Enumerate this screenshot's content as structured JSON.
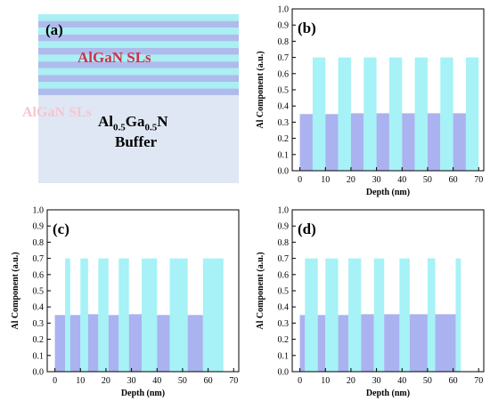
{
  "schematic": {
    "panel_label": "(a)",
    "sls_label": "AlGaN SLs",
    "ghost_label": "AlGaN SLs",
    "buffer": {
      "main": "Al",
      "sub1": "0.5",
      "mid": "Ga",
      "sub2": "0.5",
      "end": "N",
      "line2": "Buffer"
    },
    "colors": {
      "light_stripe": "#a9eff3",
      "dark_stripe": "#aebbeb",
      "buffer": "#dfe7f4"
    }
  },
  "colors": {
    "barrier": "#a6f2f6",
    "well": "#aab2ef",
    "axis": "#000000"
  },
  "chart_data": [
    {
      "type": "bar",
      "panel": "(b)",
      "xlabel": "Depth (nm)",
      "ylabel": "Al Component (a.u.)",
      "xlim": [
        -3,
        72
      ],
      "ylim": [
        0,
        1.0
      ],
      "xticks": [
        0,
        10,
        20,
        30,
        40,
        50,
        60,
        70
      ],
      "yticks": [
        0,
        0.1,
        0.2,
        0.3,
        0.4,
        0.5,
        0.6,
        0.7,
        0.8,
        0.9,
        1.0
      ],
      "layers": [
        {
          "x0": 0,
          "x1": 5,
          "y": 0.35
        },
        {
          "x0": 5,
          "x1": 10,
          "y": 0.7
        },
        {
          "x0": 10,
          "x1": 15,
          "y": 0.35
        },
        {
          "x0": 15,
          "x1": 20,
          "y": 0.7
        },
        {
          "x0": 20,
          "x1": 25,
          "y": 0.355
        },
        {
          "x0": 25,
          "x1": 30,
          "y": 0.7
        },
        {
          "x0": 30,
          "x1": 35,
          "y": 0.355
        },
        {
          "x0": 35,
          "x1": 40,
          "y": 0.7
        },
        {
          "x0": 40,
          "x1": 45,
          "y": 0.355
        },
        {
          "x0": 45,
          "x1": 50,
          "y": 0.7
        },
        {
          "x0": 50,
          "x1": 55,
          "y": 0.355
        },
        {
          "x0": 55,
          "x1": 60,
          "y": 0.7
        },
        {
          "x0": 60,
          "x1": 65,
          "y": 0.355
        },
        {
          "x0": 65,
          "x1": 70,
          "y": 0.7
        }
      ]
    },
    {
      "type": "bar",
      "panel": "(c)",
      "xlabel": "Depth (nm)",
      "ylabel": "Al Component (a.u.)",
      "xlim": [
        -3,
        72
      ],
      "ylim": [
        0,
        1.0
      ],
      "xticks": [
        0,
        10,
        20,
        30,
        40,
        50,
        60,
        70
      ],
      "yticks": [
        0,
        0.1,
        0.2,
        0.3,
        0.4,
        0.5,
        0.6,
        0.7,
        0.8,
        0.9,
        1.0
      ],
      "layers": [
        {
          "x0": 0,
          "x1": 4,
          "y": 0.35
        },
        {
          "x0": 4,
          "x1": 6,
          "y": 0.7
        },
        {
          "x0": 6,
          "x1": 10,
          "y": 0.35
        },
        {
          "x0": 10,
          "x1": 13,
          "y": 0.7
        },
        {
          "x0": 13,
          "x1": 17,
          "y": 0.355
        },
        {
          "x0": 17,
          "x1": 21,
          "y": 0.7
        },
        {
          "x0": 21,
          "x1": 25,
          "y": 0.35
        },
        {
          "x0": 25,
          "x1": 29,
          "y": 0.7
        },
        {
          "x0": 29,
          "x1": 34,
          "y": 0.355
        },
        {
          "x0": 34,
          "x1": 40,
          "y": 0.7
        },
        {
          "x0": 40,
          "x1": 45,
          "y": 0.35
        },
        {
          "x0": 45,
          "x1": 52,
          "y": 0.7
        },
        {
          "x0": 52,
          "x1": 58,
          "y": 0.35
        },
        {
          "x0": 58,
          "x1": 66,
          "y": 0.7
        }
      ]
    },
    {
      "type": "bar",
      "panel": "(d)",
      "xlabel": "Depth (nm)",
      "ylabel": "Al Component (a.u.)",
      "xlim": [
        -3,
        72
      ],
      "ylim": [
        0,
        1.0
      ],
      "xticks": [
        0,
        10,
        20,
        30,
        40,
        50,
        60,
        70
      ],
      "yticks": [
        0,
        0.1,
        0.2,
        0.3,
        0.4,
        0.5,
        0.6,
        0.7,
        0.8,
        0.9,
        1.0
      ],
      "layers": [
        {
          "x0": 0,
          "x1": 2,
          "y": 0.35
        },
        {
          "x0": 2,
          "x1": 7,
          "y": 0.7
        },
        {
          "x0": 7,
          "x1": 10,
          "y": 0.35
        },
        {
          "x0": 10,
          "x1": 15,
          "y": 0.7
        },
        {
          "x0": 15,
          "x1": 19,
          "y": 0.35
        },
        {
          "x0": 19,
          "x1": 24,
          "y": 0.7
        },
        {
          "x0": 24,
          "x1": 29,
          "y": 0.355
        },
        {
          "x0": 29,
          "x1": 33,
          "y": 0.7
        },
        {
          "x0": 33,
          "x1": 39,
          "y": 0.355
        },
        {
          "x0": 39,
          "x1": 43,
          "y": 0.7
        },
        {
          "x0": 43,
          "x1": 50,
          "y": 0.355
        },
        {
          "x0": 50,
          "x1": 53,
          "y": 0.7
        },
        {
          "x0": 53,
          "x1": 61,
          "y": 0.355
        },
        {
          "x0": 61,
          "x1": 63,
          "y": 0.7
        }
      ]
    }
  ]
}
